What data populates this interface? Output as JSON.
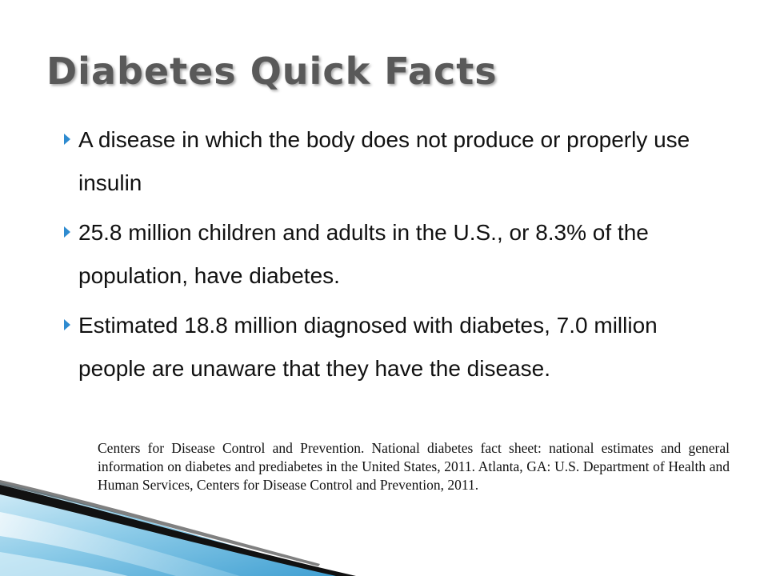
{
  "slide": {
    "title": "Diabetes Quick Facts",
    "bullets": [
      "A disease in which the body does not produce or properly use insulin",
      "25.8 million children and adults in the U.S., or 8.3% of the population, have diabetes.",
      "Estimated 18.8 million diagnosed with diabetes, 7.0 million people are unaware that they have the disease."
    ],
    "citation": "Centers for Disease Control and Prevention. National diabetes fact sheet: national estimates and general information on diabetes and prediabetes in the United States, 2011. Atlanta, GA: U.S. Department of Health and Human Services, Centers for Disease Control and Prevention, 2011."
  },
  "theme": {
    "bullet_color": "#2e8bd0",
    "title_color": "#595959",
    "swoosh_light": "#bfe3f3",
    "swoosh_mid": "#5aaed8",
    "swoosh_dark": "#111111"
  },
  "icons": {
    "bullet": "right-triangle-icon"
  }
}
